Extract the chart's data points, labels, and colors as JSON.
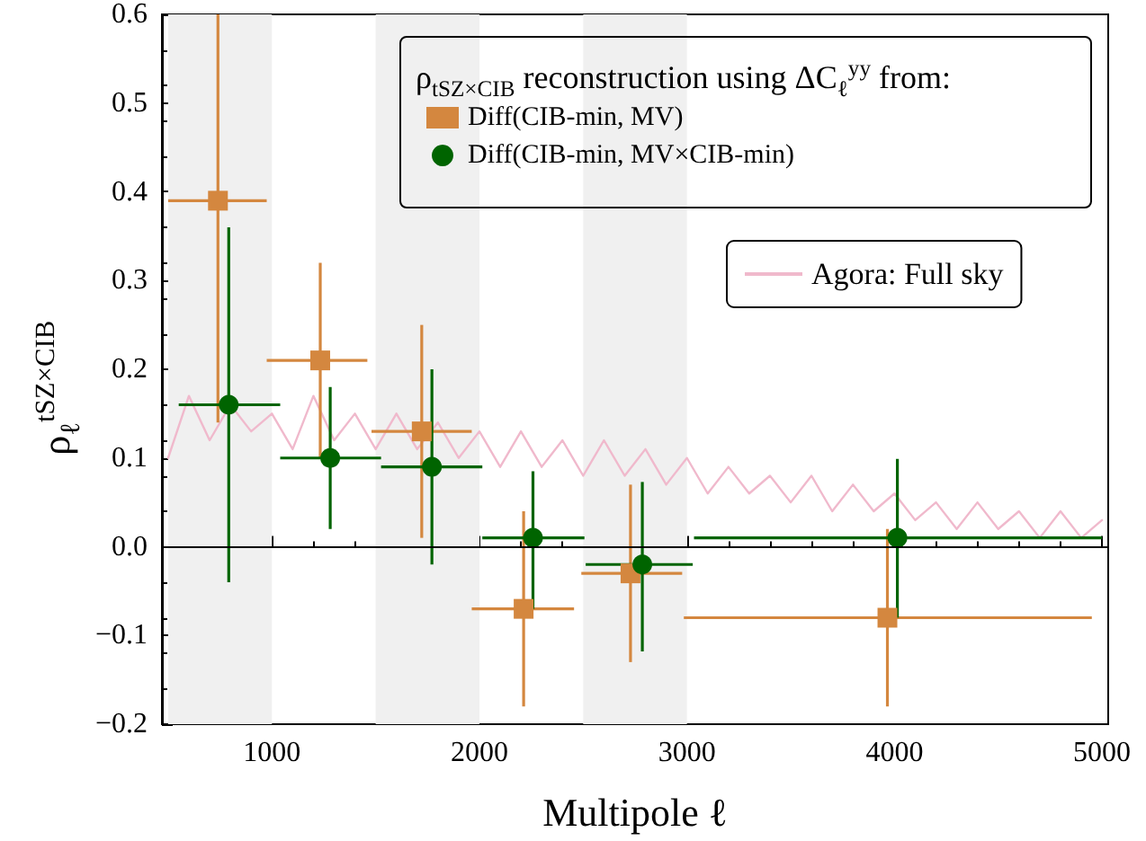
{
  "chart_data": {
    "type": "scatter",
    "xlabel": "Multipole ℓ",
    "ylabel": "ρ$_{ℓ}$$^{tSZ×CIB}$",
    "legend_title": "ρ$_{tSZ×CIB}$ reconstruction using ΔC$_{ℓ}$$^{yy}$ from:",
    "xlim": [
      470,
      5030
    ],
    "xticks": [
      1000,
      2000,
      3000,
      4000,
      5000
    ],
    "ylim": [
      -0.2,
      0.6
    ],
    "yticks": [
      {
        "value": -0.2,
        "label": "−0.2"
      },
      {
        "value": -0.1,
        "label": "−0.1"
      },
      {
        "value": 0,
        "label": "0.0"
      },
      {
        "value": 0.1,
        "label": "0.1"
      },
      {
        "value": 0.2,
        "label": "0.2"
      },
      {
        "value": 0.3,
        "label": "0.3"
      },
      {
        "value": 0.4,
        "label": "0.4"
      },
      {
        "value": 0.5,
        "label": "0.5"
      },
      {
        "value": 0.6,
        "label": "0.6"
      }
    ],
    "legend": "top right",
    "grid": false,
    "ref_lines": [
      {
        "axis": "y",
        "value": 0,
        "color": "#000000"
      }
    ],
    "bands": [
      {
        "axis": "x",
        "from": 500,
        "to": 1000,
        "color": "#f0f0f0"
      },
      {
        "axis": "x",
        "from": 1500,
        "to": 2000,
        "color": "#f0f0f0"
      },
      {
        "axis": "x",
        "from": 2500,
        "to": 3000,
        "color": "#f0f0f0"
      }
    ],
    "series": [
      {
        "name": "Agora: Full sky",
        "type": "line",
        "color": "#f0b9cc",
        "marker": "none",
        "line_style": "solid",
        "x": [
          500,
          600,
          700,
          800,
          900,
          1000,
          1100,
          1200,
          1300,
          1400,
          1500,
          1600,
          1700,
          1800,
          1900,
          2000,
          2100,
          2200,
          2300,
          2400,
          2500,
          2600,
          2700,
          2800,
          2900,
          3000,
          3100,
          3200,
          3300,
          3400,
          3500,
          3600,
          3700,
          3800,
          3900,
          4000,
          4100,
          4200,
          4300,
          4400,
          4500,
          4600,
          4700,
          4800,
          4900,
          5000
        ],
        "values": [
          0.1,
          0.17,
          0.12,
          0.16,
          0.13,
          0.15,
          0.11,
          0.17,
          0.12,
          0.15,
          0.11,
          0.15,
          0.11,
          0.14,
          0.1,
          0.13,
          0.09,
          0.13,
          0.09,
          0.12,
          0.08,
          0.12,
          0.08,
          0.11,
          0.07,
          0.1,
          0.06,
          0.09,
          0.06,
          0.08,
          0.05,
          0.08,
          0.04,
          0.07,
          0.04,
          0.06,
          0.03,
          0.05,
          0.02,
          0.05,
          0.02,
          0.04,
          0.01,
          0.04,
          0.01,
          0.03
        ]
      },
      {
        "name": "Diff(CIB-min, MV)",
        "color": "#d4873f",
        "marker": "square",
        "x": [
          740,
          1233,
          1722,
          2213,
          2728,
          3966
        ],
        "values": [
          0.39,
          0.21,
          0.13,
          -0.07,
          -0.03,
          -0.08
        ],
        "errors": [
          [
            0.14,
            0.6
          ],
          [
            0.1,
            0.32
          ],
          [
            0.01,
            0.25
          ],
          [
            -0.18,
            0.04
          ],
          [
            -0.13,
            0.07
          ],
          [
            -0.18,
            0.02
          ]
        ],
        "xerrors": [
          [
            500,
            975
          ],
          [
            975,
            1460
          ],
          [
            1480,
            1963
          ],
          [
            1963,
            2456
          ],
          [
            2491,
            2977
          ],
          [
            2985,
            4951
          ]
        ]
      },
      {
        "name": "Diff(CIB-min, MV×CIB-min)",
        "color": "#006400",
        "marker": "circle",
        "x": [
          792,
          1281,
          1771,
          2258,
          2785,
          4014
        ],
        "values": [
          0.16,
          0.1,
          0.09,
          0.01,
          -0.02,
          0.01
        ],
        "errors": [
          [
            -0.04,
            0.36
          ],
          [
            0.02,
            0.18
          ],
          [
            -0.02,
            0.2
          ],
          [
            -0.07,
            0.085
          ],
          [
            -0.118,
            0.073
          ],
          [
            -0.08,
            0.099
          ]
        ],
        "xerrors": [
          [
            551,
            1040
          ],
          [
            1040,
            1526
          ],
          [
            1526,
            2014
          ],
          [
            2014,
            2506
          ],
          [
            2512,
            3028
          ],
          [
            3034,
            5000
          ]
        ]
      }
    ]
  }
}
